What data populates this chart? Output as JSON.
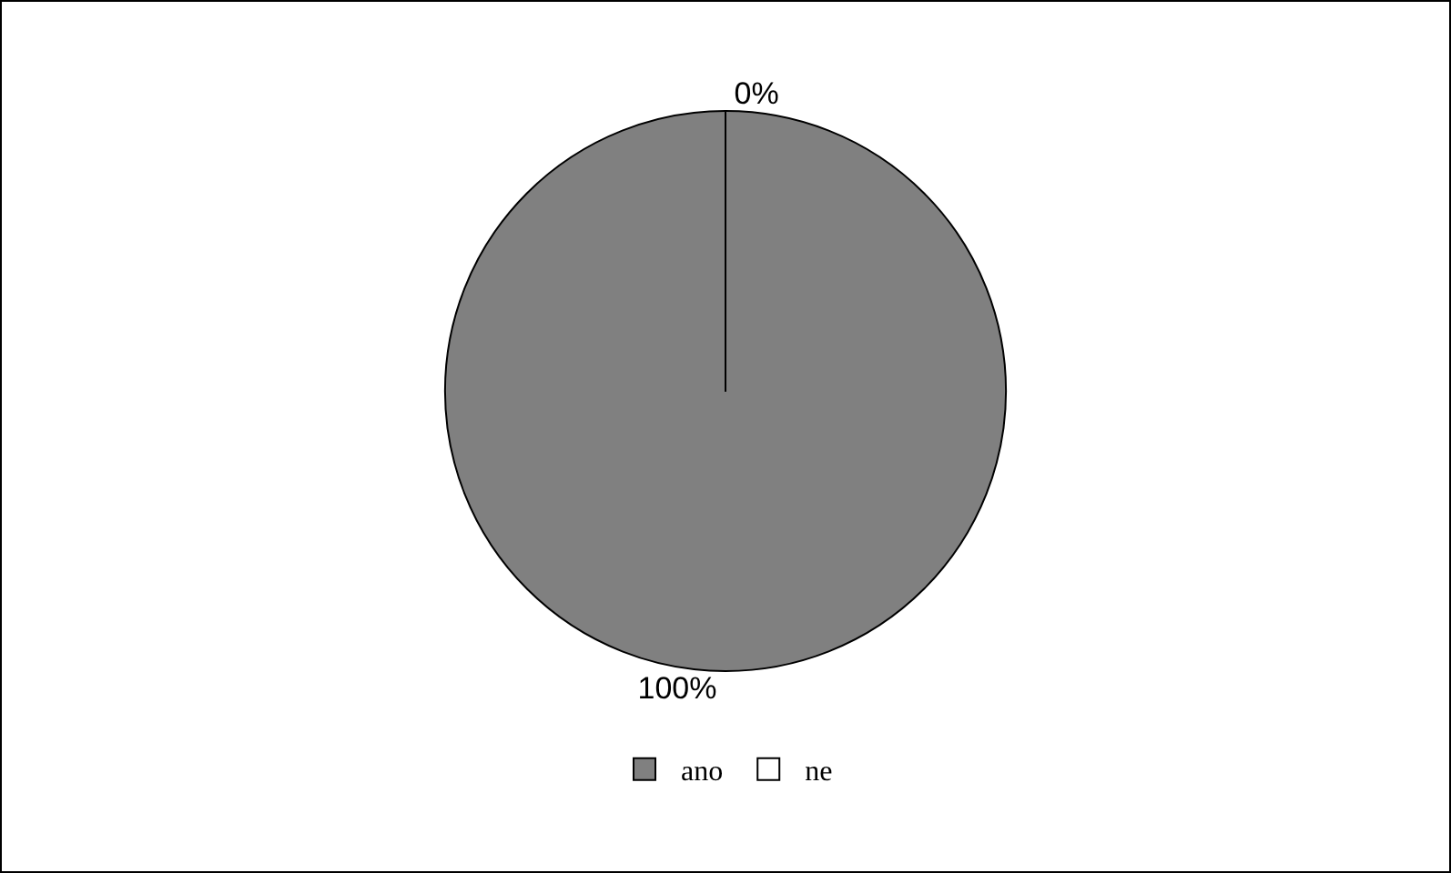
{
  "chart_data": {
    "type": "pie",
    "categories": [
      "ano",
      "ne"
    ],
    "values": [
      100,
      0
    ],
    "colors": [
      "#808080",
      "#ffffff"
    ],
    "value_labels": [
      "100%",
      "0%"
    ],
    "legend": "bottom"
  }
}
